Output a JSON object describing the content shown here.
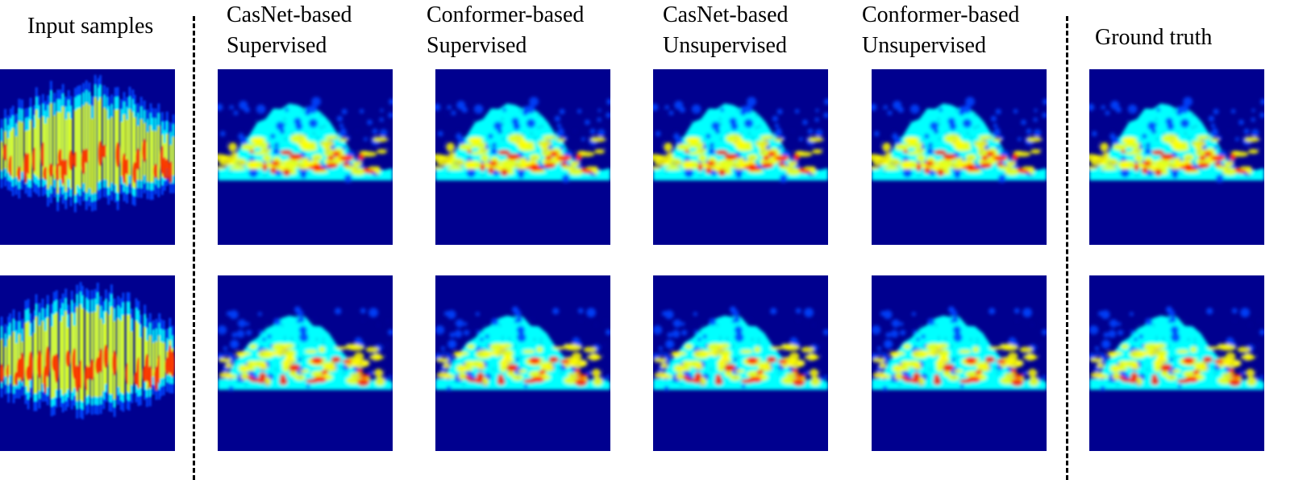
{
  "columns": [
    {
      "id": "input",
      "label": "Input samples",
      "kind": "input"
    },
    {
      "id": "casnet-sup",
      "label": "CasNet-based\nSupervised",
      "kind": "map"
    },
    {
      "id": "conformer-sup",
      "label": "Conformer-based\nSupervised",
      "kind": "map"
    },
    {
      "id": "casnet-unsup",
      "label": "CasNet-based\nUnsupervised",
      "kind": "map"
    },
    {
      "id": "conformer-unsup",
      "label": "Conformer-based\nUnsupervised",
      "kind": "map"
    },
    {
      "id": "ground-truth",
      "label": "Ground truth",
      "kind": "map"
    }
  ],
  "rows": 2,
  "colormap": {
    "background": "#00008f",
    "low": "#0044ff",
    "mid": "#00ffff",
    "high": "#ffff00",
    "peak": "#ff2200"
  }
}
